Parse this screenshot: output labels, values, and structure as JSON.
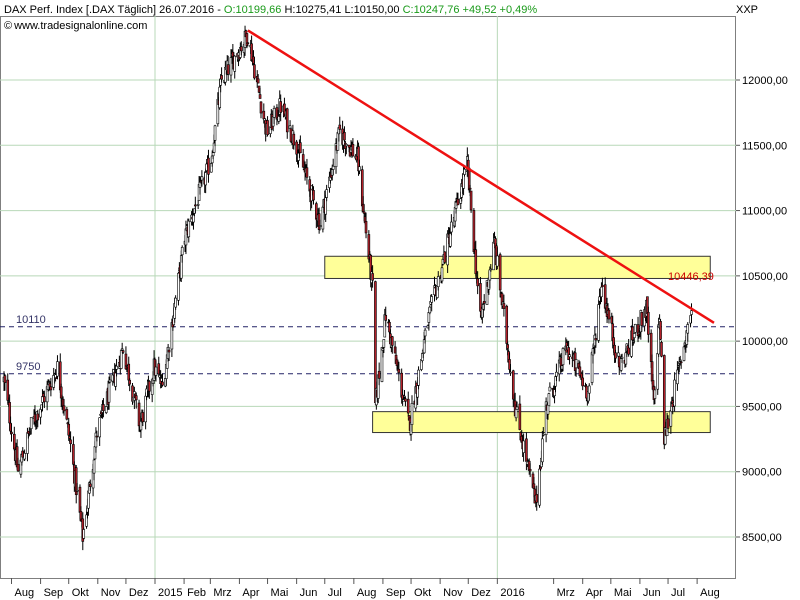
{
  "header": {
    "instrument": "DAX Perf. Index [.DAX  Täglich] 26.07.2016 -",
    "open": "O:10199,66",
    "high": "H:10275,41",
    "low": "L:10150,00",
    "close": "C:10247,76",
    "change": "+49,52 +0,49%",
    "source": "www.tradesignalonline.com",
    "exchange": "XXP"
  },
  "colors": {
    "up_candle": "#ffffff",
    "down_candle": "#b3202a",
    "trendline": "#ee1111",
    "zone_fill": "#ffff99",
    "zone_border": "#333333",
    "grid": "#b8d8b8",
    "hline": "#222266",
    "ohlc_text": "#1a9a1a"
  },
  "chart_data": {
    "type": "candlestick",
    "title": "DAX Perf. Index",
    "x_tick_labels": [
      "Aug",
      "Sep",
      "Okt",
      "Nov",
      "Dez",
      "2015",
      "Feb",
      "Mrz",
      "Apr",
      "Mai",
      "Jun",
      "Jul",
      "Aug",
      "Sep",
      "Okt",
      "Nov",
      "Dez",
      "2016",
      "Mrz",
      "Apr",
      "Mai",
      "Jun",
      "Jul",
      "Aug"
    ],
    "y_tick_labels": [
      "8500,00",
      "9000,00",
      "9500,00",
      "10000,00",
      "10500,00",
      "11000,00",
      "11500,00",
      "12000,00"
    ],
    "y_ticks": [
      8500,
      9000,
      9500,
      10000,
      10500,
      11000,
      11500,
      12000
    ],
    "ylim": [
      8200,
      12450
    ],
    "grid": true,
    "path_points": [
      {
        "date": "2014-07-24",
        "v": 9700
      },
      {
        "date": "2014-08-08",
        "v": 9000
      },
      {
        "date": "2014-08-22",
        "v": 9350
      },
      {
        "date": "2014-09-19",
        "v": 9800
      },
      {
        "date": "2014-10-03",
        "v": 9200
      },
      {
        "date": "2014-10-16",
        "v": 8500
      },
      {
        "date": "2014-10-31",
        "v": 9300
      },
      {
        "date": "2014-11-28",
        "v": 9950
      },
      {
        "date": "2014-12-16",
        "v": 9350
      },
      {
        "date": "2014-12-31",
        "v": 9800
      },
      {
        "date": "2015-01-09",
        "v": 9650
      },
      {
        "date": "2015-02-02",
        "v": 10800
      },
      {
        "date": "2015-03-02",
        "v": 11400
      },
      {
        "date": "2015-03-13",
        "v": 12000
      },
      {
        "date": "2015-04-10",
        "v": 12350
      },
      {
        "date": "2015-04-30",
        "v": 11600
      },
      {
        "date": "2015-05-15",
        "v": 11800
      },
      {
        "date": "2015-06-01",
        "v": 11500
      },
      {
        "date": "2015-06-26",
        "v": 10900
      },
      {
        "date": "2015-07-17",
        "v": 11600
      },
      {
        "date": "2015-08-05",
        "v": 11400
      },
      {
        "date": "2015-08-21",
        "v": 10400
      },
      {
        "date": "2015-08-24",
        "v": 9500
      },
      {
        "date": "2015-09-04",
        "v": 10200
      },
      {
        "date": "2015-09-29",
        "v": 9350
      },
      {
        "date": "2015-10-19",
        "v": 10150
      },
      {
        "date": "2015-11-30",
        "v": 11350
      },
      {
        "date": "2015-12-14",
        "v": 10150
      },
      {
        "date": "2015-12-29",
        "v": 10750
      },
      {
        "date": "2016-01-20",
        "v": 9500
      },
      {
        "date": "2016-02-11",
        "v": 8750
      },
      {
        "date": "2016-02-22",
        "v": 9500
      },
      {
        "date": "2016-03-15",
        "v": 9950
      },
      {
        "date": "2016-04-07",
        "v": 9600
      },
      {
        "date": "2016-04-21",
        "v": 10450
      },
      {
        "date": "2016-05-10",
        "v": 9800
      },
      {
        "date": "2016-06-08",
        "v": 10250
      },
      {
        "date": "2016-06-16",
        "v": 9500
      },
      {
        "date": "2016-06-22",
        "v": 10200
      },
      {
        "date": "2016-06-27",
        "v": 9250
      },
      {
        "date": "2016-07-26",
        "v": 10247.76
      }
    ],
    "trendline": {
      "start": {
        "date": "2015-04-10",
        "v": 12380
      },
      "end": {
        "date": "2016-08-19",
        "v": 10140
      },
      "label": "10446,39"
    },
    "zones": [
      {
        "from": "2015-07-01",
        "to": "2016-08-15",
        "low": 10480,
        "high": 10650
      },
      {
        "from": "2015-08-21",
        "to": "2016-08-15",
        "low": 9300,
        "high": 9460
      }
    ],
    "hlines": [
      {
        "value": 10110,
        "label": "10110"
      },
      {
        "value": 9750,
        "label": "9750"
      }
    ]
  }
}
